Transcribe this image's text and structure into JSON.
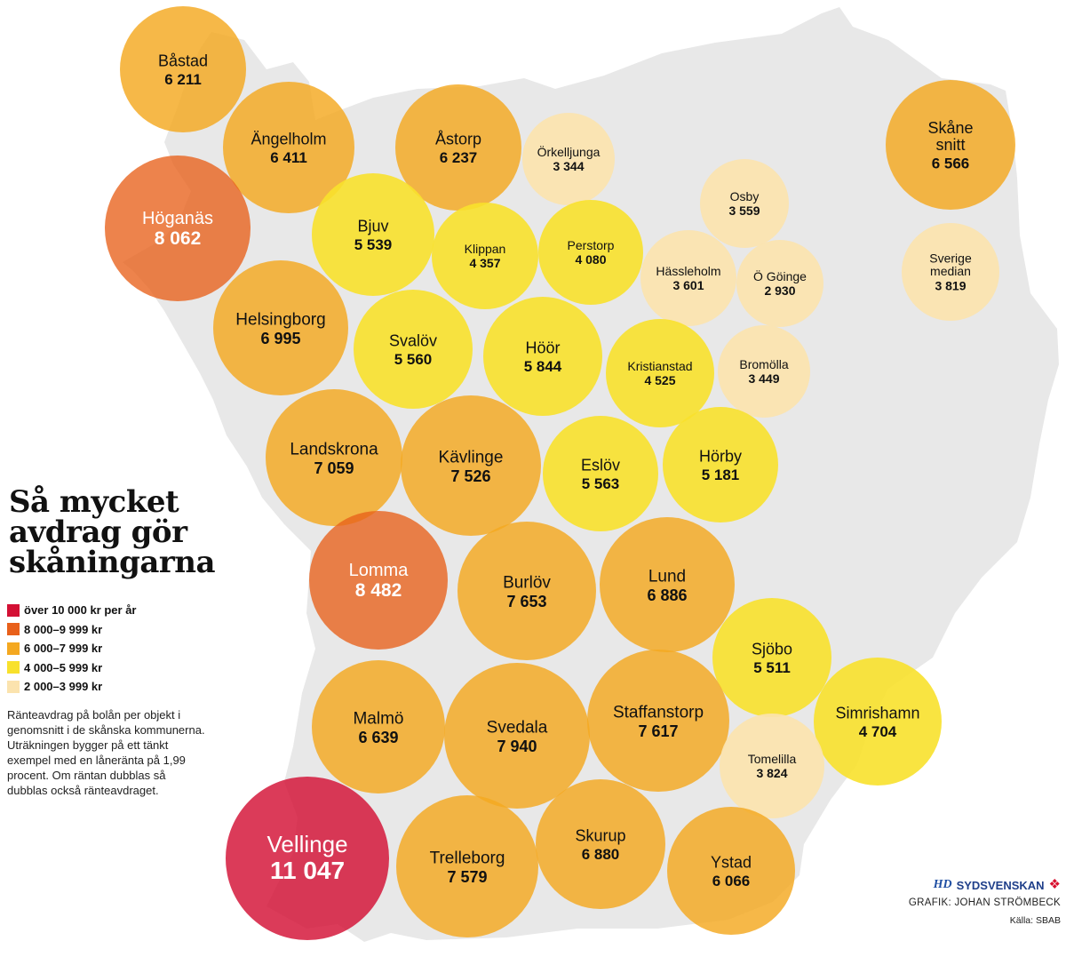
{
  "title": [
    "Så mycket",
    "avdrag gör",
    "skåningarna"
  ],
  "legend": [
    {
      "label": "över 10 000 kr per år",
      "color": "#d31034"
    },
    {
      "label": "8 000–9 999 kr",
      "color": "#e8601a"
    },
    {
      "label": "6 000–7 999 kr",
      "color": "#f4a820"
    },
    {
      "label": "4 000–5 999 kr",
      "color": "#f8e12c"
    },
    {
      "label": "2 000–3 999 kr",
      "color": "#fbe3ae"
    }
  ],
  "description": [
    "Ränteavdrag på bolån per objekt i",
    "genomsnitt i de skånska kommunerna.",
    "Uträkningen bygger på ett tänkt",
    "exempel med en låneränta på 1,99",
    "procent. Om räntan dubblas så",
    "dubblas också ränteavdraget."
  ],
  "credits": {
    "hd": "HD",
    "brand": "SYDSVENSKAN",
    "grafik": "GRAFIK: JOHAN STRÖMBECK",
    "source": "Källa: SBAB"
  },
  "municipalities": [
    {
      "id": "bastad",
      "name": "Båstad",
      "value": "6 211",
      "tier": 2
    },
    {
      "id": "angelholm",
      "name": "Ängelholm",
      "value": "6 411",
      "tier": 2
    },
    {
      "id": "astorp",
      "name": "Åstorp",
      "value": "6 237",
      "tier": 2
    },
    {
      "id": "orkelljunga",
      "name": "Örkelljunga",
      "value": "3 344",
      "tier": 4
    },
    {
      "id": "hoganas",
      "name": "Höganäs",
      "value": "8 062",
      "tier": 1
    },
    {
      "id": "bjuv",
      "name": "Bjuv",
      "value": "5 539",
      "tier": 3
    },
    {
      "id": "klippan",
      "name": "Klippan",
      "value": "4 357",
      "tier": 3
    },
    {
      "id": "perstorp",
      "name": "Perstorp",
      "value": "4 080",
      "tier": 3
    },
    {
      "id": "osby",
      "name": "Osby",
      "value": "3 559",
      "tier": 4
    },
    {
      "id": "hassleholm",
      "name": "Hässleholm",
      "value": "3 601",
      "tier": 4
    },
    {
      "id": "ogoinge",
      "name": "Ö Göinge",
      "value": "2 930",
      "tier": 4
    },
    {
      "id": "helsingborg",
      "name": "Helsingborg",
      "value": "6 995",
      "tier": 2
    },
    {
      "id": "svalov",
      "name": "Svalöv",
      "value": "5 560",
      "tier": 3
    },
    {
      "id": "hoor",
      "name": "Höör",
      "value": "5 844",
      "tier": 3
    },
    {
      "id": "kristianstad",
      "name": "Kristianstad",
      "value": "4 525",
      "tier": 3
    },
    {
      "id": "bromolla",
      "name": "Bromölla",
      "value": "3 449",
      "tier": 4
    },
    {
      "id": "landskrona",
      "name": "Landskrona",
      "value": "7 059",
      "tier": 2
    },
    {
      "id": "kavlinge",
      "name": "Kävlinge",
      "value": "7 526",
      "tier": 2
    },
    {
      "id": "eslov",
      "name": "Eslöv",
      "value": "5 563",
      "tier": 3
    },
    {
      "id": "horby",
      "name": "Hörby",
      "value": "5 181",
      "tier": 3
    },
    {
      "id": "lomma",
      "name": "Lomma",
      "value": "8 482",
      "tier": 1
    },
    {
      "id": "burlov",
      "name": "Burlöv",
      "value": "7 653",
      "tier": 2
    },
    {
      "id": "lund",
      "name": "Lund",
      "value": "6 886",
      "tier": 2
    },
    {
      "id": "sjobo",
      "name": "Sjöbo",
      "value": "5 511",
      "tier": 3
    },
    {
      "id": "simrishamn",
      "name": "Simrishamn",
      "value": "4 704",
      "tier": 3
    },
    {
      "id": "malmo",
      "name": "Malmö",
      "value": "6 639",
      "tier": 2
    },
    {
      "id": "svedala",
      "name": "Svedala",
      "value": "7 940",
      "tier": 2
    },
    {
      "id": "staffanstorp",
      "name": "Staffanstorp",
      "value": "7 617",
      "tier": 2
    },
    {
      "id": "tomelilla",
      "name": "Tomelilla",
      "value": "3 824",
      "tier": 4
    },
    {
      "id": "vellinge",
      "name": "Vellinge",
      "value": "11 047",
      "tier": 0
    },
    {
      "id": "trelleborg",
      "name": "Trelleborg",
      "value": "7 579",
      "tier": 2
    },
    {
      "id": "skurup",
      "name": "Skurup",
      "value": "6 880",
      "tier": 2
    },
    {
      "id": "ystad",
      "name": "Ystad",
      "value": "6 066",
      "tier": 2
    },
    {
      "id": "skane-snitt",
      "name": "Skåne snitt",
      "value": "6 566",
      "tier": 2
    },
    {
      "id": "sverige-median",
      "name": "Sverige median",
      "value": "3 819",
      "tier": 4
    }
  ]
}
